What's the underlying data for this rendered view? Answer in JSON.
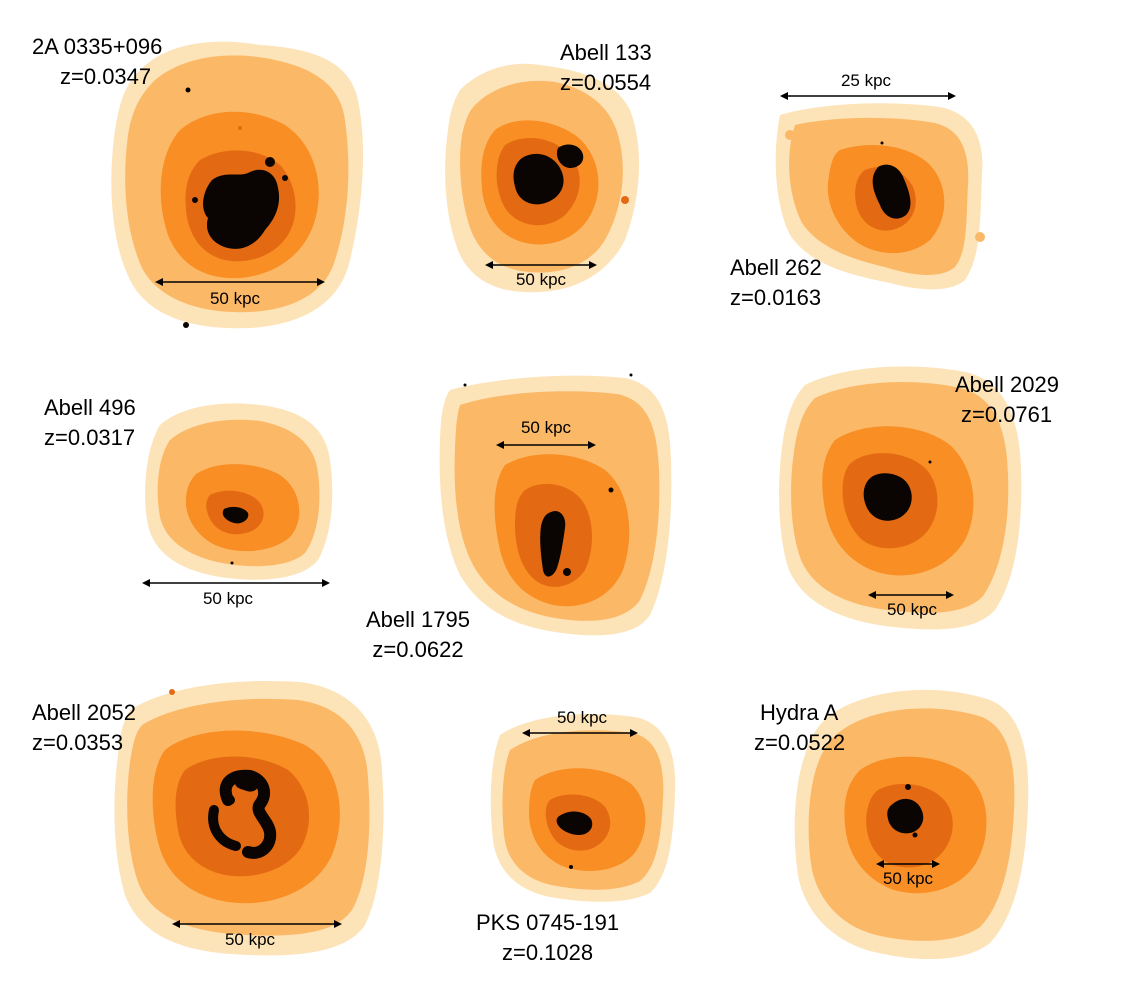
{
  "palette": {
    "halo": "#fde3b8",
    "outer": "#fbb968",
    "mid": "#f88e24",
    "inner": "#e36a12",
    "core": "#0a0502"
  },
  "clusters": [
    {
      "name": "2A 0335+096",
      "redshift": "z=0.0347",
      "scale_label": "50 kpc"
    },
    {
      "name": "Abell 133",
      "redshift": "z=0.0554",
      "scale_label": "50 kpc"
    },
    {
      "name": "Abell 262",
      "redshift": "z=0.0163",
      "scale_label": "25 kpc"
    },
    {
      "name": "Abell 496",
      "redshift": "z=0.0317",
      "scale_label": "50 kpc"
    },
    {
      "name": "Abell 1795",
      "redshift": "z=0.0622",
      "scale_label": "50 kpc"
    },
    {
      "name": "Abell 2029",
      "redshift": "z=0.0761",
      "scale_label": "50 kpc"
    },
    {
      "name": "Abell 2052",
      "redshift": "z=0.0353",
      "scale_label": "50 kpc"
    },
    {
      "name": "PKS 0745-191",
      "redshift": "z=0.1028",
      "scale_label": "50 kpc"
    },
    {
      "name": "Hydra A",
      "redshift": "z=0.0522",
      "scale_label": "50 kpc"
    }
  ]
}
